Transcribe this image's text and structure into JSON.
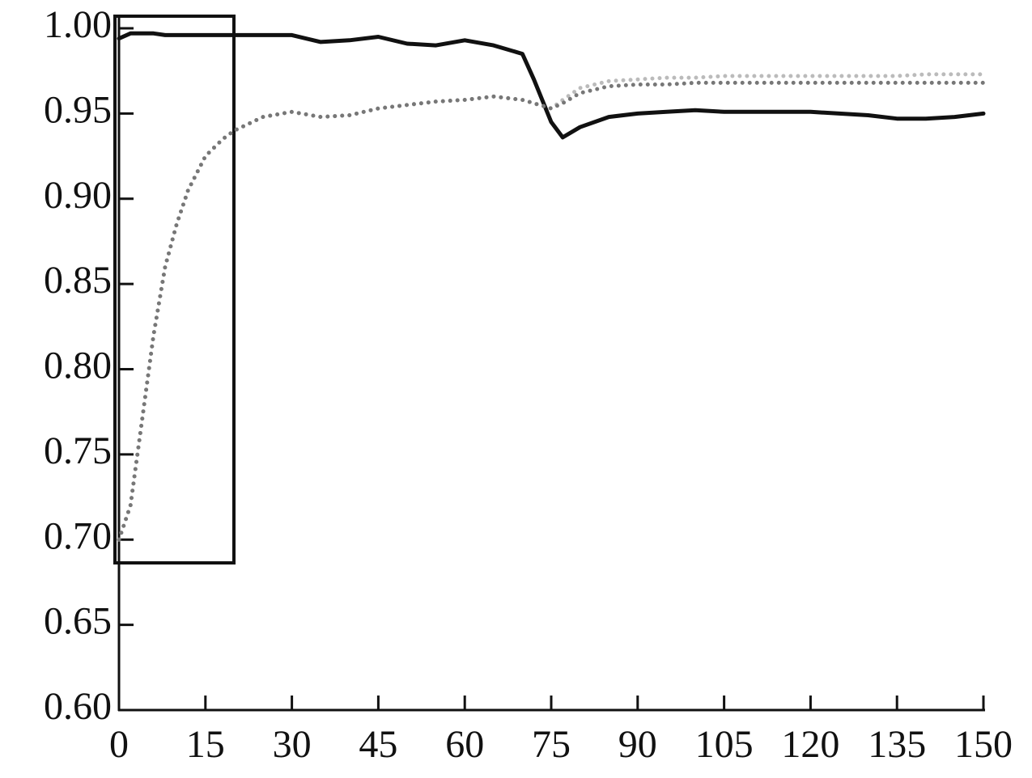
{
  "chart_data": {
    "type": "line",
    "x": [
      0,
      2,
      4,
      6,
      8,
      10,
      12,
      15,
      18,
      20,
      25,
      30,
      35,
      40,
      45,
      50,
      55,
      60,
      65,
      70,
      72,
      75,
      77,
      80,
      85,
      90,
      95,
      100,
      105,
      110,
      115,
      120,
      125,
      130,
      135,
      140,
      145,
      150
    ],
    "series": [
      {
        "color": "#111111",
        "style": "solid",
        "values": [
          0.994,
          0.997,
          0.997,
          0.997,
          0.996,
          0.996,
          0.996,
          0.996,
          0.996,
          0.996,
          0.996,
          0.996,
          0.992,
          0.993,
          0.995,
          0.991,
          0.99,
          0.993,
          0.99,
          0.985,
          0.97,
          0.945,
          0.936,
          0.942,
          0.948,
          0.95,
          0.951,
          0.952,
          0.951,
          0.951,
          0.951,
          0.951,
          0.95,
          0.949,
          0.947,
          0.947,
          0.948,
          0.95
        ]
      },
      {
        "color": "#bbbbbb",
        "style": "dotted",
        "values": [
          0.7,
          0.72,
          0.77,
          0.82,
          0.86,
          0.885,
          0.905,
          0.925,
          0.935,
          0.94,
          0.948,
          0.951,
          0.948,
          0.949,
          0.953,
          0.955,
          0.957,
          0.958,
          0.96,
          0.958,
          0.956,
          0.953,
          0.958,
          0.965,
          0.969,
          0.97,
          0.971,
          0.971,
          0.972,
          0.972,
          0.972,
          0.972,
          0.972,
          0.972,
          0.972,
          0.973,
          0.973,
          0.973
        ]
      },
      {
        "color": "#777777",
        "style": "dotted",
        "values": [
          0.7,
          0.72,
          0.77,
          0.82,
          0.86,
          0.885,
          0.905,
          0.925,
          0.935,
          0.94,
          0.948,
          0.951,
          0.948,
          0.949,
          0.953,
          0.955,
          0.957,
          0.958,
          0.96,
          0.958,
          0.956,
          0.953,
          0.956,
          0.962,
          0.966,
          0.967,
          0.967,
          0.968,
          0.968,
          0.968,
          0.968,
          0.968,
          0.968,
          0.968,
          0.968,
          0.968,
          0.968,
          0.968
        ]
      }
    ],
    "xlim": [
      0,
      150
    ],
    "xticks": [
      0,
      15,
      30,
      45,
      60,
      75,
      90,
      105,
      120,
      135,
      150
    ],
    "ylim": [
      0.6,
      1.0
    ],
    "yticks": [
      {
        "value": 0.6,
        "label": "0.60"
      },
      {
        "value": 0.65,
        "label": "0.65"
      },
      {
        "value": 0.7,
        "label": "0.70"
      },
      {
        "value": 0.75,
        "label": "0.75"
      },
      {
        "value": 0.8,
        "label": "0.80"
      },
      {
        "value": 0.85,
        "label": "0.85"
      },
      {
        "value": 0.9,
        "label": "0.90"
      },
      {
        "value": 0.95,
        "label": "0.95"
      },
      {
        "value": 1.0,
        "label": "1.00"
      }
    ],
    "grid": false
  }
}
